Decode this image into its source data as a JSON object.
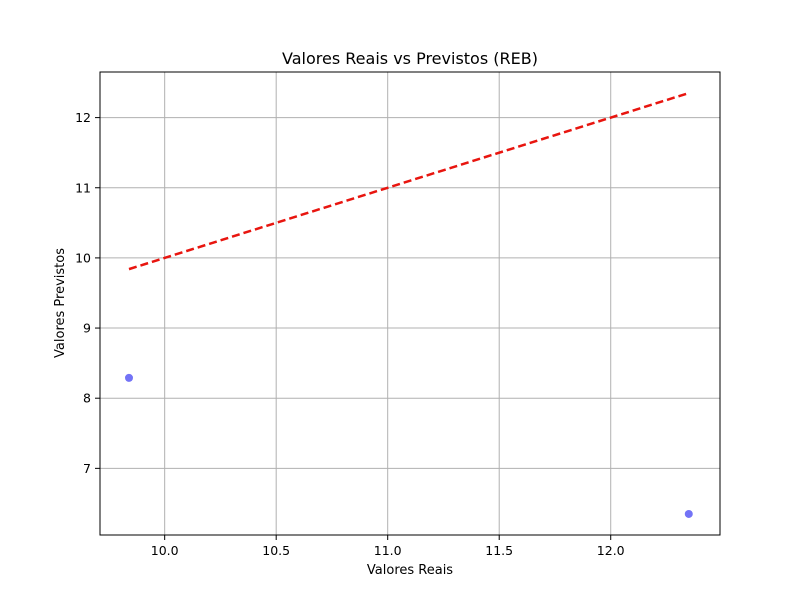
{
  "chart_data": {
    "type": "scatter",
    "title": "Valores Reais vs Previstos (REB)",
    "xlabel": "Valores Reais",
    "ylabel": "Valores Previstos",
    "xlim": [
      9.71,
      12.49
    ],
    "ylim": [
      6.05,
      12.65
    ],
    "xticks": [
      "10.0",
      "10.5",
      "11.0",
      "11.5",
      "12.0"
    ],
    "yticks": [
      "7",
      "8",
      "9",
      "10",
      "11",
      "12"
    ],
    "grid": true,
    "points": {
      "color": "#6b6bf5",
      "x": [
        9.84,
        12.35
      ],
      "y": [
        8.29,
        6.35
      ]
    },
    "reference_line": {
      "style": "dashed",
      "color": "#e8150f",
      "x": [
        9.84,
        12.35
      ],
      "y": [
        9.84,
        12.35
      ]
    }
  }
}
